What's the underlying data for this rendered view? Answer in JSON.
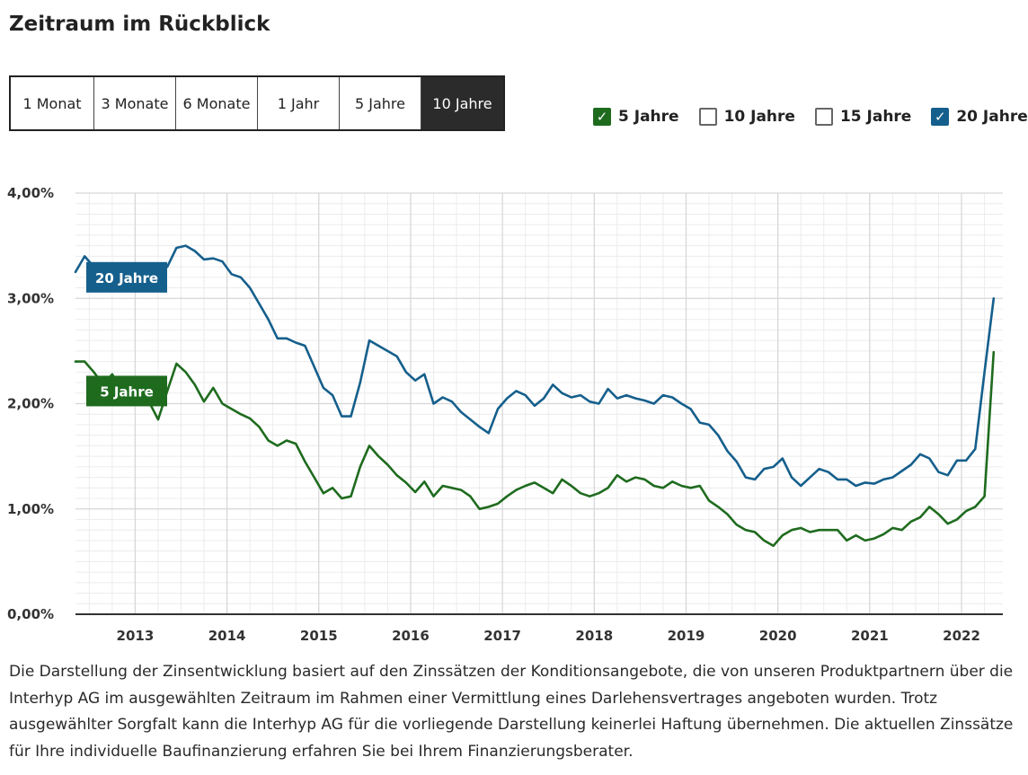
{
  "title": "Zeitraum im Rückblick",
  "range_buttons": [
    {
      "label": "1 Monat",
      "active": false
    },
    {
      "label": "3 Monate",
      "active": false
    },
    {
      "label": "6 Monate",
      "active": false
    },
    {
      "label": "1 Jahr",
      "active": false
    },
    {
      "label": "5 Jahre",
      "active": false
    },
    {
      "label": "10 Jahre",
      "active": true
    }
  ],
  "legend": [
    {
      "label": "5 Jahre",
      "checked": true,
      "color": "#1e6b1e"
    },
    {
      "label": "10 Jahre",
      "checked": false,
      "color": "#666666"
    },
    {
      "label": "15 Jahre",
      "checked": false,
      "color": "#666666"
    },
    {
      "label": "20 Jahre",
      "checked": true,
      "color": "#155f8c"
    }
  ],
  "chart_data": {
    "type": "line",
    "y_ticks": [
      "4,00%",
      "3,00%",
      "2,00%",
      "1,00%",
      "0,00%"
    ],
    "ylim": [
      0,
      4
    ],
    "x_ticks": [
      "2013",
      "2014",
      "2015",
      "2016",
      "2017",
      "2018",
      "2019",
      "2020",
      "2021",
      "2022"
    ],
    "xlim": [
      2012.35,
      2022.45
    ],
    "grid": true,
    "series": [
      {
        "name": "20 Jahre",
        "color": "#155f8c",
        "x": [
          2012.35,
          2012.45,
          2012.55,
          2012.65,
          2012.75,
          2012.85,
          2012.95,
          2013.05,
          2013.15,
          2013.25,
          2013.35,
          2013.45,
          2013.55,
          2013.65,
          2013.75,
          2013.85,
          2013.95,
          2014.05,
          2014.15,
          2014.25,
          2014.35,
          2014.45,
          2014.55,
          2014.65,
          2014.75,
          2014.85,
          2014.95,
          2015.05,
          2015.15,
          2015.25,
          2015.35,
          2015.45,
          2015.55,
          2015.65,
          2015.75,
          2015.85,
          2015.95,
          2016.05,
          2016.15,
          2016.25,
          2016.35,
          2016.45,
          2016.55,
          2016.65,
          2016.75,
          2016.85,
          2016.95,
          2017.05,
          2017.15,
          2017.25,
          2017.35,
          2017.45,
          2017.55,
          2017.65,
          2017.75,
          2017.85,
          2017.95,
          2018.05,
          2018.15,
          2018.25,
          2018.35,
          2018.45,
          2018.55,
          2018.65,
          2018.75,
          2018.85,
          2018.95,
          2019.05,
          2019.15,
          2019.25,
          2019.35,
          2019.45,
          2019.55,
          2019.65,
          2019.75,
          2019.85,
          2019.95,
          2020.05,
          2020.15,
          2020.25,
          2020.35,
          2020.45,
          2020.55,
          2020.65,
          2020.75,
          2020.85,
          2020.95,
          2021.05,
          2021.15,
          2021.25,
          2021.35,
          2021.45,
          2021.55,
          2021.65,
          2021.75,
          2021.85,
          2021.95,
          2022.05,
          2022.15,
          2022.25,
          2022.35
        ],
        "y": [
          3.25,
          3.4,
          3.3,
          3.2,
          3.15,
          3.2,
          3.18,
          3.22,
          3.15,
          3.25,
          3.3,
          3.48,
          3.5,
          3.45,
          3.37,
          3.38,
          3.35,
          3.23,
          3.2,
          3.1,
          2.95,
          2.8,
          2.62,
          2.62,
          2.58,
          2.55,
          2.35,
          2.15,
          2.08,
          1.88,
          1.88,
          2.2,
          2.6,
          2.55,
          2.5,
          2.45,
          2.3,
          2.22,
          2.28,
          2.0,
          2.06,
          2.02,
          1.92,
          1.85,
          1.78,
          1.72,
          1.95,
          2.05,
          2.12,
          2.08,
          1.98,
          2.05,
          2.18,
          2.1,
          2.06,
          2.08,
          2.02,
          2.0,
          2.14,
          2.05,
          2.08,
          2.05,
          2.03,
          2.0,
          2.08,
          2.06,
          2.0,
          1.95,
          1.82,
          1.8,
          1.7,
          1.55,
          1.45,
          1.3,
          1.28,
          1.38,
          1.4,
          1.48,
          1.3,
          1.22,
          1.3,
          1.38,
          1.35,
          1.28,
          1.28,
          1.22,
          1.25,
          1.24,
          1.28,
          1.3,
          1.36,
          1.42,
          1.52,
          1.48,
          1.35,
          1.32,
          1.46,
          1.46,
          1.57,
          2.3,
          3.0
        ]
      },
      {
        "name": "5 Jahre",
        "color": "#1e6b1e",
        "x": [
          2012.35,
          2012.45,
          2012.55,
          2012.65,
          2012.75,
          2012.85,
          2012.95,
          2013.05,
          2013.15,
          2013.25,
          2013.35,
          2013.45,
          2013.55,
          2013.65,
          2013.75,
          2013.85,
          2013.95,
          2014.05,
          2014.15,
          2014.25,
          2014.35,
          2014.45,
          2014.55,
          2014.65,
          2014.75,
          2014.85,
          2014.95,
          2015.05,
          2015.15,
          2015.25,
          2015.35,
          2015.45,
          2015.55,
          2015.65,
          2015.75,
          2015.85,
          2015.95,
          2016.05,
          2016.15,
          2016.25,
          2016.35,
          2016.45,
          2016.55,
          2016.65,
          2016.75,
          2016.85,
          2016.95,
          2017.05,
          2017.15,
          2017.25,
          2017.35,
          2017.45,
          2017.55,
          2017.65,
          2017.75,
          2017.85,
          2017.95,
          2018.05,
          2018.15,
          2018.25,
          2018.35,
          2018.45,
          2018.55,
          2018.65,
          2018.75,
          2018.85,
          2018.95,
          2019.05,
          2019.15,
          2019.25,
          2019.35,
          2019.45,
          2019.55,
          2019.65,
          2019.75,
          2019.85,
          2019.95,
          2020.05,
          2020.15,
          2020.25,
          2020.35,
          2020.45,
          2020.55,
          2020.65,
          2020.75,
          2020.85,
          2020.95,
          2021.05,
          2021.15,
          2021.25,
          2021.35,
          2021.45,
          2021.55,
          2021.65,
          2021.75,
          2021.85,
          2021.95,
          2022.05,
          2022.15,
          2022.25,
          2022.35
        ],
        "y": [
          2.4,
          2.4,
          2.3,
          2.18,
          2.28,
          2.12,
          2.15,
          2.12,
          2.02,
          1.85,
          2.12,
          2.38,
          2.3,
          2.18,
          2.02,
          2.15,
          2.0,
          1.95,
          1.9,
          1.86,
          1.78,
          1.65,
          1.6,
          1.65,
          1.62,
          1.45,
          1.3,
          1.15,
          1.2,
          1.1,
          1.12,
          1.4,
          1.6,
          1.5,
          1.42,
          1.32,
          1.25,
          1.16,
          1.26,
          1.12,
          1.22,
          1.2,
          1.18,
          1.12,
          1.0,
          1.02,
          1.05,
          1.12,
          1.18,
          1.22,
          1.25,
          1.2,
          1.15,
          1.28,
          1.22,
          1.15,
          1.12,
          1.15,
          1.2,
          1.32,
          1.26,
          1.3,
          1.28,
          1.22,
          1.2,
          1.26,
          1.22,
          1.2,
          1.22,
          1.08,
          1.02,
          0.95,
          0.85,
          0.8,
          0.78,
          0.7,
          0.65,
          0.75,
          0.8,
          0.82,
          0.78,
          0.8,
          0.8,
          0.8,
          0.7,
          0.75,
          0.7,
          0.72,
          0.76,
          0.82,
          0.8,
          0.88,
          0.92,
          1.02,
          0.95,
          0.86,
          0.9,
          0.98,
          1.02,
          1.12,
          2.49
        ]
      }
    ],
    "labels": [
      {
        "series": "20 Jahre",
        "text": "20 Jahre"
      },
      {
        "series": "5 Jahre",
        "text": "5 Jahre"
      }
    ]
  },
  "footnote": "Die Darstellung der Zinsentwicklung basiert auf den Zinssätzen der Konditionsangebote, die von unseren Produktpartnern über die Interhyp AG im ausgewählten Zeitraum im Rahmen einer Vermittlung eines Darlehensvertrages angeboten wurden. Trotz ausgewählter Sorgfalt kann die Interhyp AG für die vorliegende Darstellung keinerlei Haftung übernehmen. Die aktuellen Zinssätze für Ihre individuelle Baufinanzierung erfahren Sie bei Ihrem Finanzierungsberater."
}
